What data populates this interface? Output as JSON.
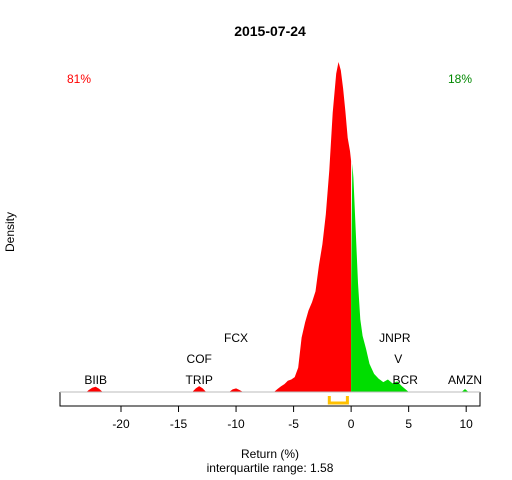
{
  "chart_data": {
    "type": "area",
    "title": "2015-07-24",
    "xlabel": "Return (%)",
    "ylabel": "Density",
    "subtitle": "interquartile range: 1.58",
    "xlim": [
      -25.3,
      11.2
    ],
    "ylim": [
      0,
      1
    ],
    "x_ticks": [
      -20,
      -15,
      -10,
      -5,
      0,
      5,
      10
    ],
    "grid": false,
    "left_share_label": "81%",
    "right_share_label": "18%",
    "colors": {
      "negative": "#ff0000",
      "positive": "#00dd00",
      "iqr_marker": "#ffc000",
      "axis": "#000000"
    },
    "iqr": [
      -1.9,
      -0.32
    ],
    "density_negative": {
      "x": [
        -23.0,
        -22.8,
        -22.5,
        -22.2,
        -21.9,
        -21.6,
        -13.8,
        -13.5,
        -13.2,
        -12.9,
        -12.6,
        -10.6,
        -10.3,
        -10.0,
        -9.7,
        -9.4,
        -6.7,
        -6.4,
        -6.1,
        -5.8,
        -5.5,
        -5.2,
        -4.9,
        -4.6,
        -4.3,
        -4.0,
        -3.7,
        -3.4,
        -3.1,
        -2.8,
        -2.5,
        -2.2,
        -1.9,
        -1.6,
        -1.3,
        -1.1,
        -0.9,
        -0.7,
        -0.5,
        -0.3,
        -0.1,
        0.0
      ],
      "y": [
        0.0,
        0.006,
        0.013,
        0.016,
        0.01,
        0.0,
        0.0,
        0.011,
        0.018,
        0.011,
        0.0,
        0.0,
        0.008,
        0.011,
        0.006,
        0.0,
        0.0,
        0.009,
        0.017,
        0.024,
        0.034,
        0.038,
        0.045,
        0.074,
        0.165,
        0.211,
        0.247,
        0.272,
        0.305,
        0.383,
        0.448,
        0.538,
        0.672,
        0.846,
        0.965,
        1.0,
        0.975,
        0.92,
        0.85,
        0.77,
        0.73,
        0.7
      ]
    },
    "density_positive": {
      "x": [
        0.0,
        0.1,
        0.2,
        0.4,
        0.6,
        0.8,
        1.0,
        1.3,
        1.6,
        2.0,
        2.4,
        2.8,
        3.2,
        3.6,
        4.0,
        4.4,
        4.7,
        5.0,
        9.6,
        9.9,
        10.2
      ],
      "y": [
        0.3,
        0.692,
        0.65,
        0.49,
        0.33,
        0.22,
        0.17,
        0.13,
        0.085,
        0.055,
        0.04,
        0.03,
        0.038,
        0.026,
        0.032,
        0.018,
        0.009,
        0.0,
        0.0,
        0.009,
        0.0
      ]
    },
    "annotations": [
      {
        "text": "BIIB",
        "x": -22.2,
        "level": 1
      },
      {
        "text": "TRIP",
        "x": -13.2,
        "level": 1
      },
      {
        "text": "COF",
        "x": -13.2,
        "level": 2
      },
      {
        "text": "FCX",
        "x": -10.0,
        "level": 3
      },
      {
        "text": "BCR",
        "x": 4.7,
        "level": 1
      },
      {
        "text": "V",
        "x": 4.1,
        "level": 2
      },
      {
        "text": "JNPR",
        "x": 3.8,
        "level": 3
      },
      {
        "text": "AMZN",
        "x": 9.9,
        "level": 1
      }
    ]
  }
}
